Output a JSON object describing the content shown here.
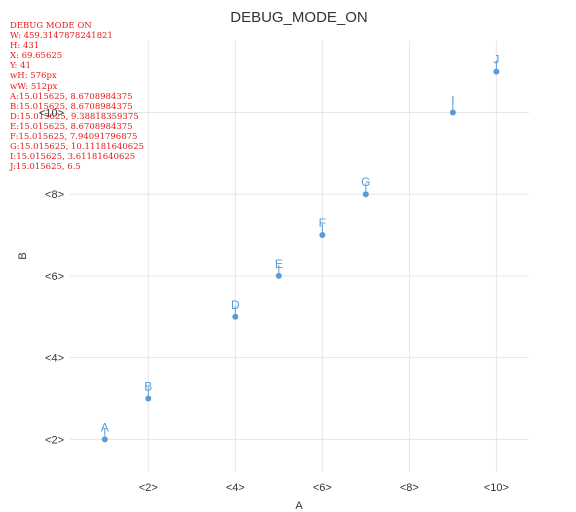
{
  "chart_data": {
    "type": "scatter",
    "title": "DEBUG_MODE_ON",
    "xlabel": "A",
    "ylabel": "B",
    "x_ticks": [
      {
        "value": 2,
        "label": "<2>"
      },
      {
        "value": 4,
        "label": "<4>"
      },
      {
        "value": 6,
        "label": "<6>"
      },
      {
        "value": 8,
        "label": "<8>"
      },
      {
        "value": 10,
        "label": "<10>"
      }
    ],
    "y_ticks": [
      {
        "value": 2,
        "label": "<2>"
      },
      {
        "value": 4,
        "label": "<4>"
      },
      {
        "value": 6,
        "label": "<6>"
      },
      {
        "value": 8,
        "label": "<8>"
      },
      {
        "value": 10,
        "label": "<10>"
      }
    ],
    "xlim": [
      0.2,
      10.75
    ],
    "ylim": [
      1.2,
      11.75
    ],
    "grid": true,
    "point_color": "#5b9bd5",
    "points": [
      {
        "label": "A",
        "x": 1,
        "y": 2
      },
      {
        "label": "B",
        "x": 2,
        "y": 3
      },
      {
        "label": "D",
        "x": 4,
        "y": 5
      },
      {
        "label": "E",
        "x": 5,
        "y": 6
      },
      {
        "label": "F",
        "x": 6,
        "y": 7
      },
      {
        "label": "G",
        "x": 7,
        "y": 8
      },
      {
        "label": "I",
        "x": 9,
        "y": 10
      },
      {
        "label": "J",
        "x": 10,
        "y": 11
      }
    ]
  },
  "debug": {
    "color": "#e8191b",
    "lines": [
      "DEBUG MODE ON",
      "W: 459.3147878241821",
      "H: 431",
      "X: 69.65625",
      "Y: 41",
      "wH: 576px",
      "wW: 512px",
      "A:15.015625, 8.6708984375",
      "B:15.015625, 8.6708984375",
      "D:15.015625, 9.38818359375",
      "E:15.015625, 8.6708984375",
      "F:15.015625, 7.94091796875",
      "G:15.015625, 10.11181640625",
      "I:15.015625, 3.61181640625",
      "J:15.015625, 6.5"
    ]
  }
}
